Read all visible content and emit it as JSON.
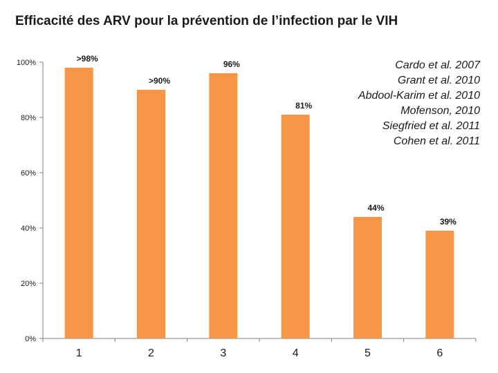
{
  "title": "Efficacité des ARV pour la prévention de l’infection par le VIH",
  "references": [
    "Cardo et al. 2007",
    "Grant et al. 2010",
    "Abdool-Karim et al. 2010",
    "Mofenson, 2010",
    "Siegfried et al. 2011",
    "Cohen et al. 2011"
  ],
  "colors": {
    "bar": "#F79646",
    "axis": "#7f7f7f",
    "text": "#1a1a1a"
  },
  "chart_data": {
    "type": "bar",
    "title": "Efficacité des ARV pour la prévention de l’infection par le VIH",
    "xlabel": "",
    "ylabel": "",
    "ylim": [
      0,
      100
    ],
    "yticks": [
      0,
      20,
      40,
      60,
      80,
      100
    ],
    "ytick_labels": [
      "0%",
      "20%",
      "40%",
      "60%",
      "80%",
      "100%"
    ],
    "grid": false,
    "categories": [
      "1",
      "2",
      "3",
      "4",
      "5",
      "6"
    ],
    "values": [
      98,
      90,
      96,
      81,
      44,
      39
    ],
    "data_labels": [
      ">98%",
      ">90%",
      "96%",
      "81%",
      "44%",
      "39%"
    ]
  }
}
